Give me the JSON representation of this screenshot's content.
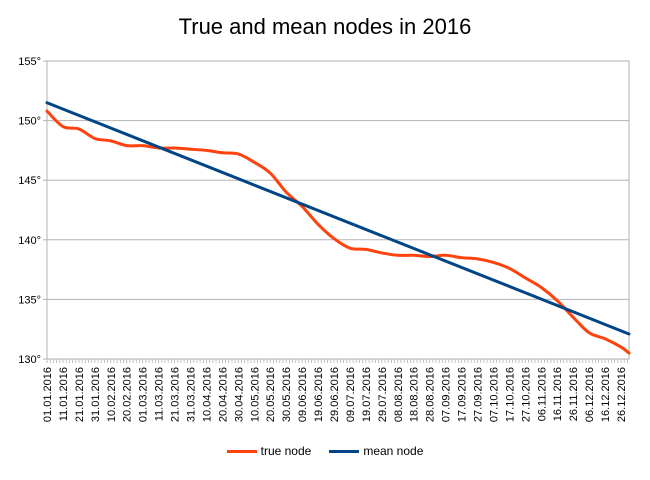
{
  "chart_data": {
    "type": "line",
    "title": "True and mean nodes in 2016",
    "xlabel": "",
    "ylabel": "",
    "ylim": [
      130,
      155
    ],
    "y_ticks": [
      "130°",
      "135°",
      "140°",
      "145°",
      "150°",
      "155°"
    ],
    "y_tick_values": [
      130,
      135,
      140,
      145,
      150,
      155
    ],
    "x_ticks": [
      "01.01.2016",
      "11.01.2016",
      "21.01.2016",
      "31.01.2016",
      "10.02.2016",
      "20.02.2016",
      "01.03.2016",
      "11.03.2016",
      "21.03.2016",
      "31.03.2016",
      "10.04.2016",
      "20.04.2016",
      "30.04.2016",
      "10.05.2016",
      "20.05.2016",
      "30.05.2016",
      "09.06.2016",
      "19.06.2016",
      "29.06.2016",
      "09.07.2016",
      "19.07.2016",
      "29.07.2016",
      "08.08.2016",
      "18.08.2016",
      "28.08.2016",
      "07.09.2016",
      "17.09.2016",
      "27.09.2016",
      "07.10.2016",
      "17.10.2016",
      "27.10.2016",
      "06.11.2016",
      "16.11.2016",
      "26.11.2016",
      "06.12.2016",
      "16.12.2016",
      "26.12.2016"
    ],
    "grid": true,
    "legend_position": "bottom",
    "series": [
      {
        "name": "true node",
        "color": "#ff420e",
        "x": [
          "01.01.2016",
          "11.01.2016",
          "21.01.2016",
          "31.01.2016",
          "10.02.2016",
          "20.02.2016",
          "01.03.2016",
          "11.03.2016",
          "21.03.2016",
          "31.03.2016",
          "10.04.2016",
          "20.04.2016",
          "30.04.2016",
          "10.05.2016",
          "20.05.2016",
          "30.05.2016",
          "09.06.2016",
          "19.06.2016",
          "29.06.2016",
          "09.07.2016",
          "19.07.2016",
          "29.07.2016",
          "08.08.2016",
          "18.08.2016",
          "28.08.2016",
          "07.09.2016",
          "17.09.2016",
          "27.09.2016",
          "07.10.2016",
          "17.10.2016",
          "27.10.2016",
          "06.11.2016",
          "16.11.2016",
          "26.11.2016",
          "06.12.2016",
          "16.12.2016",
          "26.12.2016",
          "31.12.2016"
        ],
        "values": [
          150.8,
          149.5,
          149.3,
          148.5,
          148.3,
          147.9,
          147.9,
          147.7,
          147.7,
          147.6,
          147.5,
          147.3,
          147.2,
          146.5,
          145.6,
          144.0,
          142.8,
          141.3,
          140.1,
          139.3,
          139.2,
          138.9,
          138.7,
          138.7,
          138.6,
          138.7,
          138.5,
          138.4,
          138.1,
          137.6,
          136.8,
          136.0,
          134.9,
          133.5,
          132.2,
          131.7,
          131.0,
          130.5
        ]
      },
      {
        "name": "mean node",
        "color": "#004586",
        "x": [
          "01.01.2016",
          "31.12.2016"
        ],
        "values": [
          151.5,
          132.1
        ]
      }
    ]
  }
}
